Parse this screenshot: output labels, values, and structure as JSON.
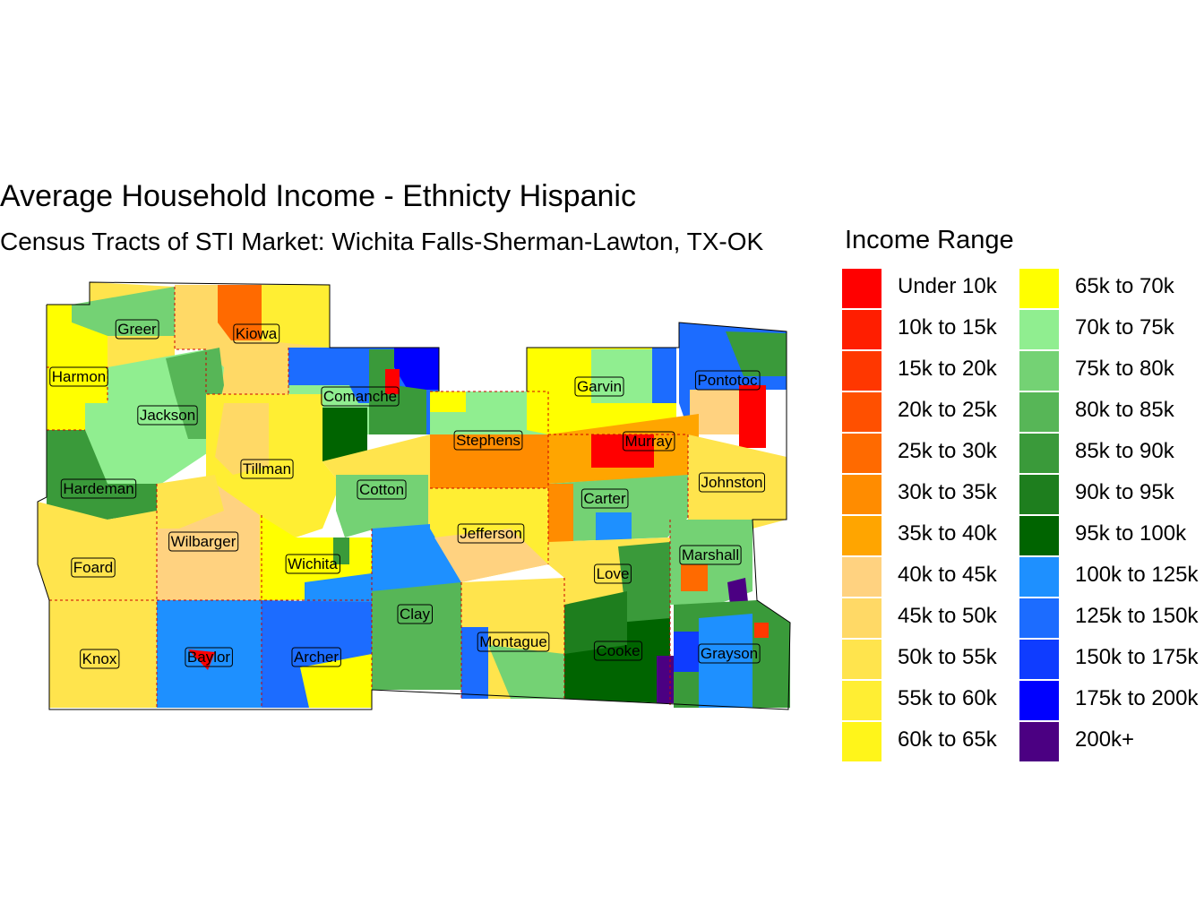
{
  "title": "Average Household Income - Ethnicty Hispanic",
  "subtitle": "Census Tracts of STI Market: Wichita Falls-Sherman-Lawton, TX-OK",
  "legend": {
    "title": "Income Range",
    "items": [
      {
        "label": "Under 10k",
        "color": "#ff0000"
      },
      {
        "label": "10k to 15k",
        "color": "#ff1e00"
      },
      {
        "label": "15k to 20k",
        "color": "#ff3700"
      },
      {
        "label": "20k to 25k",
        "color": "#ff5000"
      },
      {
        "label": "25k to 30k",
        "color": "#ff6a00"
      },
      {
        "label": "30k to 35k",
        "color": "#ff8c00"
      },
      {
        "label": "35k to 40k",
        "color": "#ffa500"
      },
      {
        "label": "40k to 45k",
        "color": "#ffd280"
      },
      {
        "label": "45k to 50k",
        "color": "#ffd966"
      },
      {
        "label": "50k to 55k",
        "color": "#ffe44d"
      },
      {
        "label": "55k to 60k",
        "color": "#ffee33"
      },
      {
        "label": "60k to 65k",
        "color": "#fff51a"
      },
      {
        "label": "65k to 70k",
        "color": "#ffff00"
      },
      {
        "label": "70k to 75k",
        "color": "#90ee90"
      },
      {
        "label": "75k to 80k",
        "color": "#74d274"
      },
      {
        "label": "80k to 85k",
        "color": "#57b657"
      },
      {
        "label": "85k to 90k",
        "color": "#3a9a3a"
      },
      {
        "label": "90k to 95k",
        "color": "#1e7e1e"
      },
      {
        "label": "95k to 100k",
        "color": "#006400"
      },
      {
        "label": "100k to 125k",
        "color": "#1e90ff"
      },
      {
        "label": "125k to 150k",
        "color": "#1c6cff"
      },
      {
        "label": "150k to 175k",
        "color": "#0f3cff"
      },
      {
        "label": "175k to 200k",
        "color": "#0000ff"
      },
      {
        "label": "200k+",
        "color": "#4b0082"
      }
    ]
  },
  "counties": [
    {
      "name": "Greer"
    },
    {
      "name": "Kiowa"
    },
    {
      "name": "Harmon"
    },
    {
      "name": "Comanche"
    },
    {
      "name": "Jackson"
    },
    {
      "name": "Tillman"
    },
    {
      "name": "Hardeman"
    },
    {
      "name": "Cotton"
    },
    {
      "name": "Wilbarger"
    },
    {
      "name": "Foard"
    },
    {
      "name": "Wichita"
    },
    {
      "name": "Clay"
    },
    {
      "name": "Knox"
    },
    {
      "name": "Baylor"
    },
    {
      "name": "Archer"
    },
    {
      "name": "Stephens"
    },
    {
      "name": "Jefferson"
    },
    {
      "name": "Montague"
    },
    {
      "name": "Garvin"
    },
    {
      "name": "Pontotoc"
    },
    {
      "name": "Murray"
    },
    {
      "name": "Carter"
    },
    {
      "name": "Johnston"
    },
    {
      "name": "Love"
    },
    {
      "name": "Marshall"
    },
    {
      "name": "Cooke"
    },
    {
      "name": "Grayson"
    }
  ]
}
